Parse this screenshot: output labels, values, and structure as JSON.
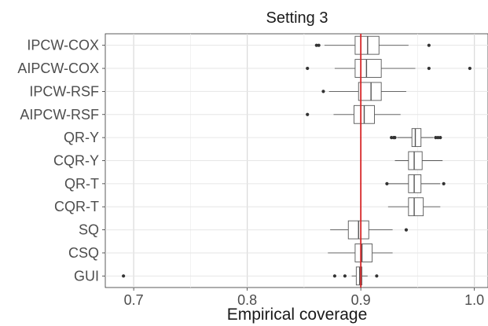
{
  "chart_data": {
    "type": "box",
    "title": "Setting 3",
    "xlabel": "Empirical coverage",
    "ylabel": "",
    "xlim": [
      0.675,
      1.012
    ],
    "x_ticks": [
      0.7,
      0.8,
      0.9,
      1.0
    ],
    "x_tick_labels": [
      "0.7",
      "0.8",
      "0.9",
      "1.0"
    ],
    "grid": true,
    "reference_line": {
      "value": 0.9,
      "color": "#d62728"
    },
    "box_color": "#555555",
    "categories": [
      "IPCW-COX",
      "AIPCW-COX",
      "IPCW-RSF",
      "AIPCW-RSF",
      "QR-Y",
      "CQR-Y",
      "QR-T",
      "CQR-T",
      "SQ",
      "CSQ",
      "GUI"
    ],
    "boxes": [
      {
        "name": "IPCW-COX",
        "whisker_low": 0.868,
        "q1": 0.895,
        "median": 0.906,
        "q3": 0.916,
        "whisker_high": 0.942,
        "outliers": [
          0.861,
          0.863,
          0.96
        ]
      },
      {
        "name": "AIPCW-COX",
        "whisker_low": 0.877,
        "q1": 0.895,
        "median": 0.905,
        "q3": 0.918,
        "whisker_high": 0.948,
        "outliers": [
          0.853,
          0.96,
          0.996
        ]
      },
      {
        "name": "IPCW-RSF",
        "whisker_low": 0.872,
        "q1": 0.898,
        "median": 0.909,
        "q3": 0.918,
        "whisker_high": 0.94,
        "outliers": [
          0.867
        ]
      },
      {
        "name": "AIPCW-RSF",
        "whisker_low": 0.876,
        "q1": 0.894,
        "median": 0.903,
        "q3": 0.912,
        "whisker_high": 0.935,
        "outliers": [
          0.853
        ]
      },
      {
        "name": "QR-Y",
        "whisker_low": 0.932,
        "q1": 0.945,
        "median": 0.948,
        "q3": 0.953,
        "whisker_high": 0.964,
        "outliers": [
          0.927,
          0.929,
          0.93,
          0.966,
          0.968,
          0.97
        ]
      },
      {
        "name": "CQR-Y",
        "whisker_low": 0.93,
        "q1": 0.942,
        "median": 0.947,
        "q3": 0.954,
        "whisker_high": 0.972,
        "outliers": []
      },
      {
        "name": "QR-T",
        "whisker_low": 0.924,
        "q1": 0.942,
        "median": 0.947,
        "q3": 0.953,
        "whisker_high": 0.97,
        "outliers": [
          0.923,
          0.973
        ]
      },
      {
        "name": "CQR-T",
        "whisker_low": 0.924,
        "q1": 0.942,
        "median": 0.947,
        "q3": 0.955,
        "whisker_high": 0.97,
        "outliers": []
      },
      {
        "name": "SQ",
        "whisker_low": 0.873,
        "q1": 0.889,
        "median": 0.898,
        "q3": 0.907,
        "whisker_high": 0.928,
        "outliers": [
          0.94
        ]
      },
      {
        "name": "CSQ",
        "whisker_low": 0.871,
        "q1": 0.895,
        "median": 0.901,
        "q3": 0.91,
        "whisker_high": 0.928,
        "outliers": []
      },
      {
        "name": "GUI",
        "whisker_low": 0.892,
        "q1": 0.896,
        "median": 0.899,
        "q3": 0.901,
        "whisker_high": 0.906,
        "outliers": [
          0.691,
          0.877,
          0.886,
          0.914
        ]
      }
    ]
  }
}
